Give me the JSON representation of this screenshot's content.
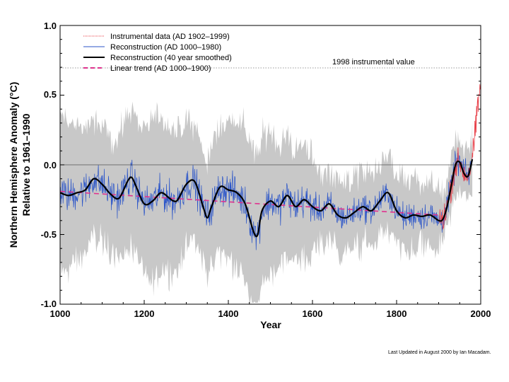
{
  "chart_data": {
    "type": "line",
    "title": "",
    "xlabel": "Year",
    "ylabel_line1": "Northern Hemisphere Anomaly (°C)",
    "ylabel_line2": "Relative to 1961–1990",
    "xlim": [
      1000,
      2000
    ],
    "ylim": [
      -1.0,
      1.0
    ],
    "xticks": [
      "1000",
      "1200",
      "1400",
      "1600",
      "1800",
      "2000"
    ],
    "yticks": [
      "1.0",
      "0.5",
      "0.0",
      "-0.5",
      "-1.0"
    ],
    "legend_position": "top-left",
    "series": [
      {
        "name": "Instrumental data (AD 1902–1999)",
        "color": "#e8414a",
        "style": "thin-line"
      },
      {
        "name": "Reconstruction (AD 1000–1980)",
        "color": "#2b55c9",
        "style": "thin-line"
      },
      {
        "name": "Reconstruction (40 year smoothed)",
        "color": "#000000",
        "style": "thick-line",
        "x": [
          1000,
          1020,
          1040,
          1060,
          1080,
          1100,
          1120,
          1140,
          1160,
          1170,
          1180,
          1200,
          1220,
          1240,
          1260,
          1270,
          1280,
          1300,
          1320,
          1340,
          1350,
          1360,
          1380,
          1400,
          1420,
          1440,
          1460,
          1470,
          1480,
          1500,
          1520,
          1540,
          1560,
          1580,
          1600,
          1620,
          1640,
          1660,
          1680,
          1700,
          1720,
          1740,
          1760,
          1780,
          1800,
          1820,
          1840,
          1860,
          1880,
          1900,
          1910,
          1920,
          1930,
          1940,
          1950,
          1960,
          1970,
          1980
        ],
        "y": [
          -0.2,
          -0.22,
          -0.2,
          -0.18,
          -0.1,
          -0.14,
          -0.21,
          -0.24,
          -0.12,
          -0.09,
          -0.15,
          -0.28,
          -0.26,
          -0.2,
          -0.24,
          -0.26,
          -0.25,
          -0.14,
          -0.12,
          -0.3,
          -0.38,
          -0.3,
          -0.16,
          -0.18,
          -0.2,
          -0.28,
          -0.48,
          -0.5,
          -0.33,
          -0.26,
          -0.3,
          -0.22,
          -0.3,
          -0.25,
          -0.3,
          -0.33,
          -0.28,
          -0.36,
          -0.38,
          -0.34,
          -0.3,
          -0.33,
          -0.26,
          -0.2,
          -0.33,
          -0.38,
          -0.36,
          -0.37,
          -0.36,
          -0.4,
          -0.39,
          -0.3,
          -0.15,
          0.0,
          0.02,
          -0.06,
          -0.08,
          0.04
        ]
      },
      {
        "name": "Linear trend (AD 1000–1900)",
        "color": "#e0338f",
        "style": "dashed",
        "x": [
          1000,
          1900
        ],
        "y": [
          -0.19,
          -0.36
        ]
      }
    ],
    "annotations": [
      {
        "text": "1998 instrumental value",
        "y": 0.7
      }
    ]
  },
  "colors": {
    "uncertainty_band": "#c8c8c8",
    "reconstruction": "#2b55c9",
    "instrumental": "#e8414a",
    "smoothed": "#000000",
    "trend": "#e0338f"
  },
  "footer": "Last Updated in August 2000 by Ian Macadam."
}
